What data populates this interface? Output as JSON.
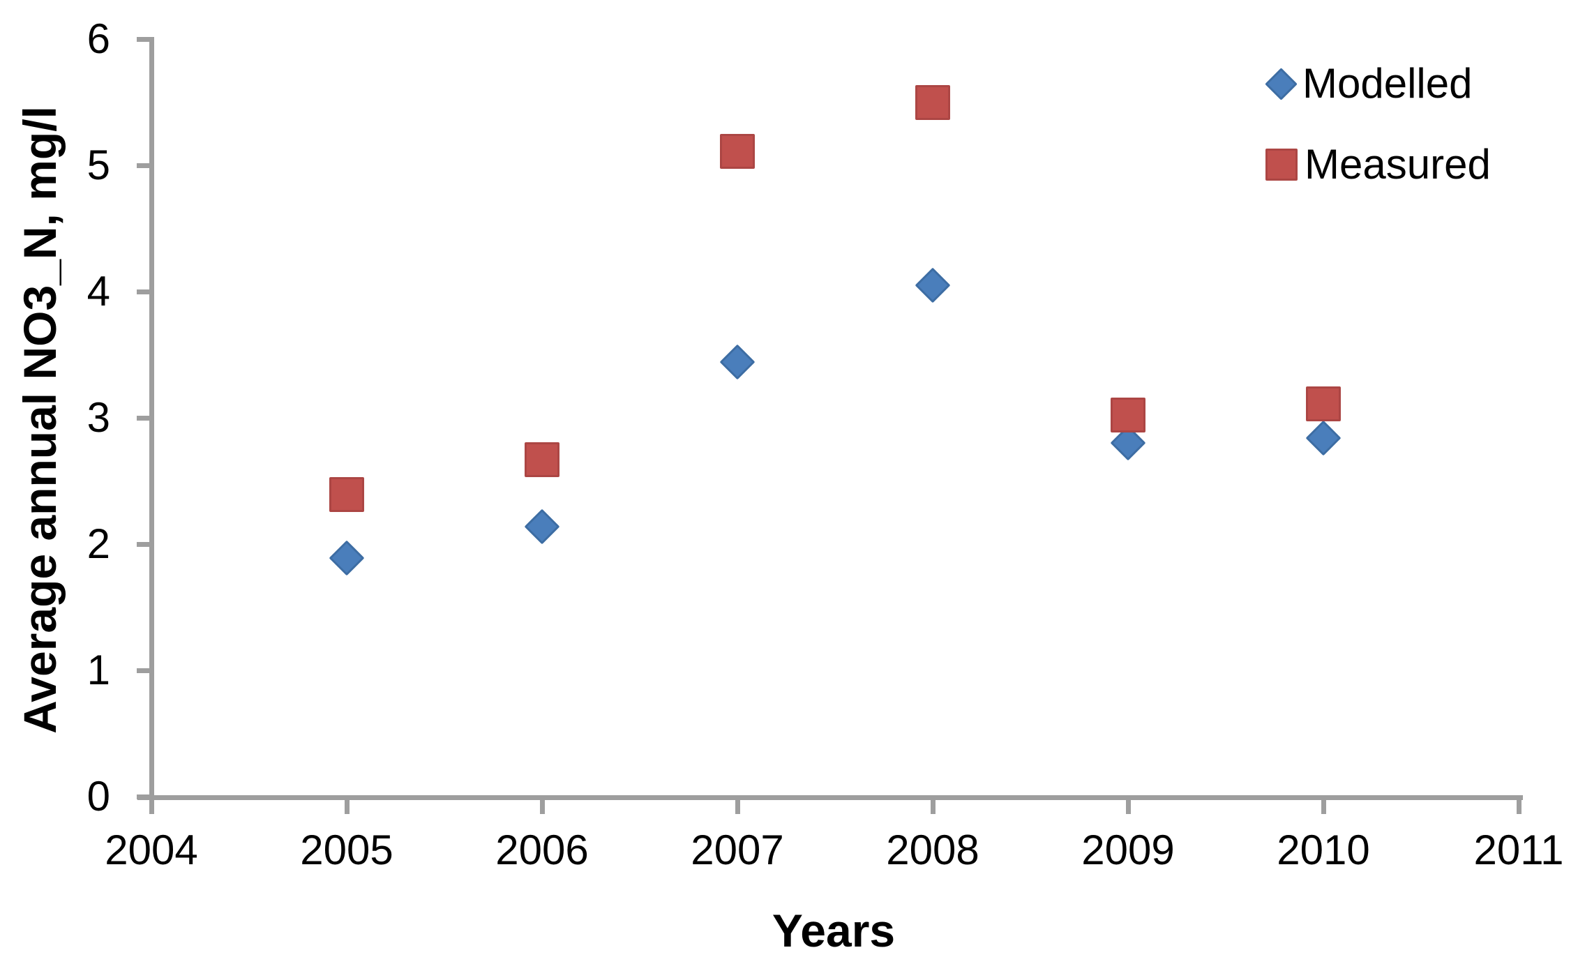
{
  "chart_data": {
    "type": "scatter",
    "title": "",
    "xlabel": "Years",
    "ylabel": "Average annual NO3_N, mg/l",
    "xlim": [
      2004,
      2011
    ],
    "ylim": [
      0,
      6
    ],
    "x_ticks": [
      2004,
      2005,
      2006,
      2007,
      2008,
      2009,
      2010,
      2011
    ],
    "y_ticks": [
      0,
      1,
      2,
      3,
      4,
      5,
      6
    ],
    "grid": false,
    "legend_position": "top-right",
    "axis_color": "#9E9E9E",
    "text_color": "#000000",
    "series": [
      {
        "name": "Modelled",
        "marker": "diamond",
        "color": "#4A7EBB",
        "x": [
          2005,
          2006,
          2007,
          2008,
          2009,
          2010
        ],
        "values": [
          1.89,
          2.14,
          3.44,
          4.05,
          2.8,
          2.84
        ]
      },
      {
        "name": "Measured",
        "marker": "square",
        "color": "#C0504D",
        "x": [
          2005,
          2006,
          2007,
          2008,
          2009,
          2010
        ],
        "values": [
          2.39,
          2.67,
          5.11,
          5.5,
          3.02,
          3.11
        ]
      }
    ]
  }
}
